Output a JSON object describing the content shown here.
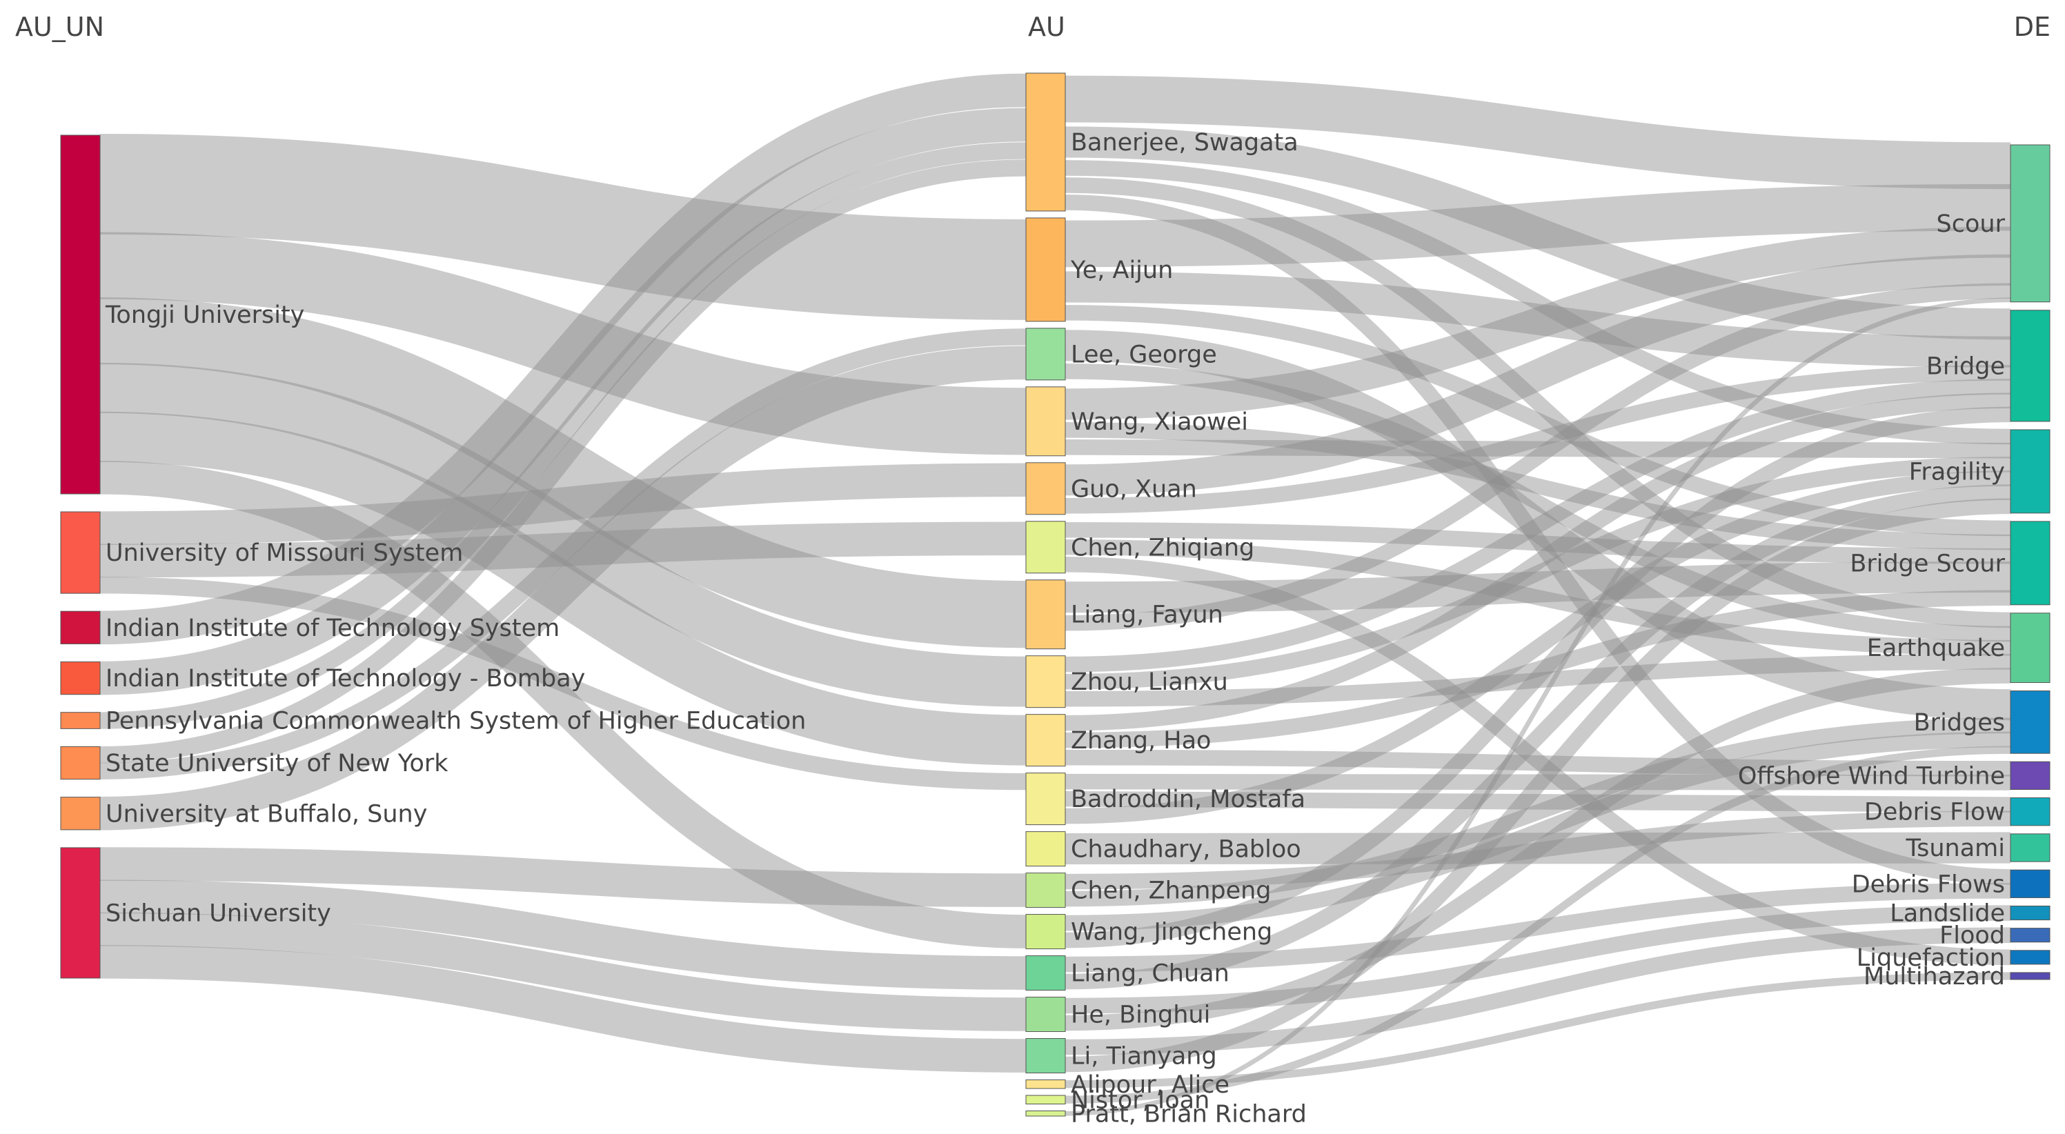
{
  "chart_data": {
    "type": "sankey",
    "columns": [
      "AU_UN",
      "AU",
      "DE"
    ],
    "link_color": "#8c8c8c",
    "nodes": {
      "AU_UN": [
        {
          "name": "Tongji University",
          "color": "#c2003f"
        },
        {
          "name": "University of Missouri System",
          "color": "#f95a4a"
        },
        {
          "name": "Indian Institute of Technology System",
          "color": "#d0143e"
        },
        {
          "name": "Indian Institute of Technology - Bombay",
          "color": "#f95a3d"
        },
        {
          "name": "Pennsylvania Commonwealth System of Higher Education",
          "color": "#fd8a51"
        },
        {
          "name": "State University of New York",
          "color": "#fd8d50"
        },
        {
          "name": "University at Buffalo, Suny",
          "color": "#fd9655"
        },
        {
          "name": "Sichuan University",
          "color": "#e0214b"
        }
      ],
      "AU": [
        {
          "name": "Banerjee, Swagata",
          "color": "#fec068"
        },
        {
          "name": "Ye, Aijun",
          "color": "#feb65c"
        },
        {
          "name": "Lee, George",
          "color": "#97e09c"
        },
        {
          "name": "Wang, Xiaowei",
          "color": "#fed985"
        },
        {
          "name": "Guo, Xuan",
          "color": "#fec670"
        },
        {
          "name": "Chen, Zhiqiang",
          "color": "#e3f28e"
        },
        {
          "name": "Liang, Fayun",
          "color": "#fecb75"
        },
        {
          "name": "Zhou, Lianxu",
          "color": "#fee28e"
        },
        {
          "name": "Zhang, Hao",
          "color": "#fee38e"
        },
        {
          "name": "Badroddin, Mostafa",
          "color": "#f5ee93"
        },
        {
          "name": "Chaudhary, Babloo",
          "color": "#eef08b"
        },
        {
          "name": "Chen, Zhanpeng",
          "color": "#c0e98e"
        },
        {
          "name": "Wang, Jingcheng",
          "color": "#d1ef88"
        },
        {
          "name": "Liang, Chuan",
          "color": "#6dd397"
        },
        {
          "name": "He, Binghui",
          "color": "#9de095"
        },
        {
          "name": "Li, Tianyang",
          "color": "#80d89a"
        },
        {
          "name": "Alipour, Alice",
          "color": "#fde38d"
        },
        {
          "name": "Nistor, Ioan",
          "color": "#def48e"
        },
        {
          "name": "Pratt, Brian Richard",
          "color": "#d7f28f"
        }
      ],
      "DE": [
        {
          "name": "Scour",
          "color": "#67cc9d"
        },
        {
          "name": "Bridge",
          "color": "#12bd9a"
        },
        {
          "name": "Fragility",
          "color": "#11b6a8"
        },
        {
          "name": "Bridge Scour",
          "color": "#10bb9f"
        },
        {
          "name": "Earthquake",
          "color": "#5ccc95"
        },
        {
          "name": "Bridges",
          "color": "#0f86c5"
        },
        {
          "name": "Offshore Wind Turbine",
          "color": "#6c4ab2"
        },
        {
          "name": "Debris Flow",
          "color": "#11aabb"
        },
        {
          "name": "Tsunami",
          "color": "#33c39a"
        },
        {
          "name": "Debris Flows",
          "color": "#0e71bd"
        },
        {
          "name": "Landslide",
          "color": "#1191bc"
        },
        {
          "name": "Flood",
          "color": "#3a6bb8"
        },
        {
          "name": "Liquefaction",
          "color": "#0d78c0"
        },
        {
          "name": "Multihazard",
          "color": "#554bb0"
        }
      ]
    },
    "links": [
      {
        "source": "Tongji University",
        "target": "Ye, Aijun",
        "value": 6
      },
      {
        "source": "Tongji University",
        "target": "Wang, Xiaowei",
        "value": 4
      },
      {
        "source": "Tongji University",
        "target": "Liang, Fayun",
        "value": 4
      },
      {
        "source": "Tongji University",
        "target": "Zhou, Lianxu",
        "value": 3
      },
      {
        "source": "Tongji University",
        "target": "Zhang, Hao",
        "value": 3
      },
      {
        "source": "Tongji University",
        "target": "Wang, Jingcheng",
        "value": 2
      },
      {
        "source": "University of Missouri System",
        "target": "Guo, Xuan",
        "value": 2
      },
      {
        "source": "University of Missouri System",
        "target": "Chen, Zhiqiang",
        "value": 2
      },
      {
        "source": "University of Missouri System",
        "target": "Badroddin, Mostafa",
        "value": 1
      },
      {
        "source": "Indian Institute of Technology System",
        "target": "Banerjee, Swagata",
        "value": 2
      },
      {
        "source": "Indian Institute of Technology - Bombay",
        "target": "Banerjee, Swagata",
        "value": 2
      },
      {
        "source": "Pennsylvania Commonwealth System of Higher Education",
        "target": "Banerjee, Swagata",
        "value": 1
      },
      {
        "source": "State University of New York",
        "target": "Banerjee, Swagata",
        "value": 1
      },
      {
        "source": "State University of New York",
        "target": "Lee, George",
        "value": 1
      },
      {
        "source": "University at Buffalo, Suny",
        "target": "Lee, George",
        "value": 2
      },
      {
        "source": "Sichuan University",
        "target": "Chen, Zhanpeng",
        "value": 2
      },
      {
        "source": "Sichuan University",
        "target": "Liang, Chuan",
        "value": 2
      },
      {
        "source": "Sichuan University",
        "target": "He, Binghui",
        "value": 2
      },
      {
        "source": "Sichuan University",
        "target": "Li, Tianyang",
        "value": 2
      },
      {
        "source": "Banerjee, Swagata",
        "target": "Scour",
        "value": 3
      },
      {
        "source": "Banerjee, Swagata",
        "target": "Bridge",
        "value": 2
      },
      {
        "source": "Banerjee, Swagata",
        "target": "Fragility",
        "value": 1
      },
      {
        "source": "Banerjee, Swagata",
        "target": "Earthquake",
        "value": 1
      },
      {
        "source": "Banerjee, Swagata",
        "target": "Debris Flows",
        "value": 1
      },
      {
        "source": "Ye, Aijun",
        "target": "Scour",
        "value": 3
      },
      {
        "source": "Ye, Aijun",
        "target": "Bridge",
        "value": 2
      },
      {
        "source": "Ye, Aijun",
        "target": "Bridge Scour",
        "value": 1
      },
      {
        "source": "Lee, George",
        "target": "Bridges",
        "value": 2
      },
      {
        "source": "Lee, George",
        "target": "Earthquake",
        "value": 1
      },
      {
        "source": "Wang, Xiaowei",
        "target": "Scour",
        "value": 2
      },
      {
        "source": "Wang, Xiaowei",
        "target": "Bridge Scour",
        "value": 1
      },
      {
        "source": "Wang, Xiaowei",
        "target": "Fragility",
        "value": 1
      },
      {
        "source": "Guo, Xuan",
        "target": "Scour",
        "value": 2
      },
      {
        "source": "Guo, Xuan",
        "target": "Bridge",
        "value": 1
      },
      {
        "source": "Chen, Zhiqiang",
        "target": "Bridge Scour",
        "value": 1
      },
      {
        "source": "Chen, Zhiqiang",
        "target": "Earthquake",
        "value": 1
      },
      {
        "source": "Chen, Zhiqiang",
        "target": "Liquefaction",
        "value": 1
      },
      {
        "source": "Liang, Fayun",
        "target": "Bridge Scour",
        "value": 2
      },
      {
        "source": "Liang, Fayun",
        "target": "Scour",
        "value": 1
      },
      {
        "source": "Zhou, Lianxu",
        "target": "Bridge",
        "value": 1
      },
      {
        "source": "Zhou, Lianxu",
        "target": "Fragility",
        "value": 1
      },
      {
        "source": "Zhou, Lianxu",
        "target": "Earthquake",
        "value": 1
      },
      {
        "source": "Zhang, Hao",
        "target": "Bridge",
        "value": 1
      },
      {
        "source": "Zhang, Hao",
        "target": "Bridge Scour",
        "value": 1
      },
      {
        "source": "Zhang, Hao",
        "target": "Offshore Wind Turbine",
        "value": 1
      },
      {
        "source": "Badroddin, Mostafa",
        "target": "Offshore Wind Turbine",
        "value": 1
      },
      {
        "source": "Badroddin, Mostafa",
        "target": "Debris Flow",
        "value": 1
      },
      {
        "source": "Badroddin, Mostafa",
        "target": "Fragility",
        "value": 1
      },
      {
        "source": "Chaudhary, Babloo",
        "target": "Tsunami",
        "value": 2
      },
      {
        "source": "Chen, Zhanpeng",
        "target": "Debris Flow",
        "value": 1
      },
      {
        "source": "Chen, Zhanpeng",
        "target": "Bridges",
        "value": 1
      },
      {
        "source": "Wang, Jingcheng",
        "target": "Bridges",
        "value": 1
      },
      {
        "source": "Wang, Jingcheng",
        "target": "Bridge",
        "value": 1
      },
      {
        "source": "Liang, Chuan",
        "target": "Debris Flows",
        "value": 1
      },
      {
        "source": "Liang, Chuan",
        "target": "Fragility",
        "value": 1
      },
      {
        "source": "He, Binghui",
        "target": "Landslide",
        "value": 1
      },
      {
        "source": "He, Binghui",
        "target": "Earthquake",
        "value": 1
      },
      {
        "source": "Li, Tianyang",
        "target": "Flood",
        "value": 1
      },
      {
        "source": "Li, Tianyang",
        "target": "Fragility",
        "value": 1
      },
      {
        "source": "Alipour, Alice",
        "target": "Multihazard",
        "value": 0.5
      },
      {
        "source": "Nistor, Ioan",
        "target": "Bridges",
        "value": 0.5
      },
      {
        "source": "Pratt, Brian Richard",
        "target": "Scour",
        "value": 0.3
      }
    ]
  }
}
